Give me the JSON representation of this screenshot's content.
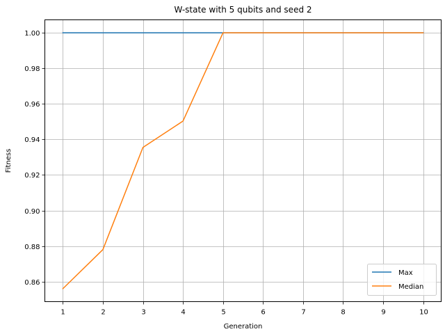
{
  "chart_data": {
    "type": "line",
    "title": "W-state with 5 qubits and seed 2",
    "xlabel": "Generation",
    "ylabel": "Fitness",
    "x": [
      1,
      2,
      3,
      4,
      5,
      6,
      7,
      8,
      9,
      10
    ],
    "xlim": [
      0.55,
      10.45
    ],
    "ylim": [
      0.8487,
      1.0073
    ],
    "xticks": [
      1,
      2,
      3,
      4,
      5,
      6,
      7,
      8,
      9,
      10
    ],
    "yticks": [
      0.86,
      0.88,
      0.9,
      0.92,
      0.94,
      0.96,
      0.98,
      1.0
    ],
    "ytick_labels": [
      "0.86",
      "0.88",
      "0.90",
      "0.92",
      "0.94",
      "0.96",
      "0.98",
      "1.00"
    ],
    "grid": true,
    "legend_position": "lower-right",
    "series": [
      {
        "name": "Max",
        "color": "#1f77b4",
        "values": [
          1.0,
          1.0,
          1.0,
          1.0,
          1.0,
          1.0,
          1.0,
          1.0,
          1.0,
          1.0
        ]
      },
      {
        "name": "Median",
        "color": "#ff7f0e",
        "values": [
          0.856,
          0.878,
          0.9355,
          0.9503,
          1.0,
          1.0,
          1.0,
          1.0,
          1.0,
          1.0
        ]
      }
    ]
  }
}
